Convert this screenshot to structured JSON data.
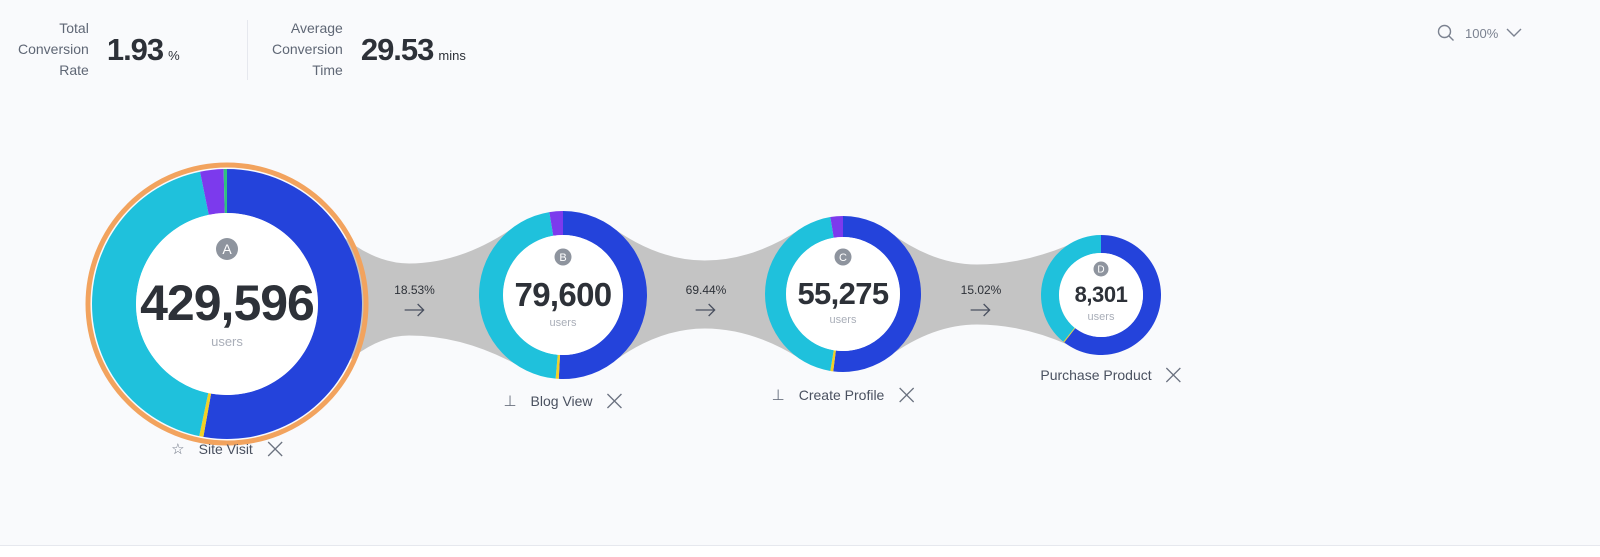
{
  "metrics": {
    "total_conversion": {
      "label_lines": [
        "Total",
        "Conversion",
        "Rate"
      ],
      "value": "1.93",
      "unit": "%"
    },
    "avg_conversion_time": {
      "label_lines": [
        "Average",
        "Conversion",
        "Time"
      ],
      "value": "29.53",
      "unit": "mins"
    }
  },
  "zoom": {
    "icon": "search-icon",
    "value": "100%",
    "dropdown_icon": "chevron-down-icon"
  },
  "colors": {
    "blue": "#2443db",
    "cyan": "#1fc1dc",
    "purple": "#7c3aed",
    "yellow": "#f2d024",
    "green": "#2ec27e",
    "connector": "#c4c4c4",
    "selected_ring": "#f2a35e",
    "badge": "#8e949e"
  },
  "steps": [
    {
      "letter": "A",
      "count": "429,596",
      "unit": "users",
      "label": "Site Visit",
      "icon": "star-icon",
      "selected": true,
      "segments": [
        {
          "color": "blue",
          "fraction": 0.528
        },
        {
          "color": "yellow",
          "fraction": 0.005
        },
        {
          "color": "cyan",
          "fraction": 0.435
        },
        {
          "color": "purple",
          "fraction": 0.028
        },
        {
          "color": "green",
          "fraction": 0.004
        }
      ]
    },
    {
      "letter": "B",
      "count": "79,600",
      "unit": "users",
      "label": "Blog View",
      "icon": "pin-icon",
      "selected": false,
      "segments": [
        {
          "color": "blue",
          "fraction": 0.508
        },
        {
          "color": "yellow",
          "fraction": 0.006
        },
        {
          "color": "cyan",
          "fraction": 0.46
        },
        {
          "color": "purple",
          "fraction": 0.026
        }
      ]
    },
    {
      "letter": "C",
      "count": "55,275",
      "unit": "users",
      "label": "Create Profile",
      "icon": "pin-icon",
      "selected": false,
      "segments": [
        {
          "color": "blue",
          "fraction": 0.52
        },
        {
          "color": "yellow",
          "fraction": 0.006
        },
        {
          "color": "cyan",
          "fraction": 0.448
        },
        {
          "color": "purple",
          "fraction": 0.026
        }
      ]
    },
    {
      "letter": "D",
      "count": "8,301",
      "unit": "users",
      "label": "Purchase Product",
      "icon": "",
      "selected": false,
      "segments": [
        {
          "color": "blue",
          "fraction": 0.605
        },
        {
          "color": "yellow",
          "fraction": 0.003
        },
        {
          "color": "cyan",
          "fraction": 0.392
        }
      ]
    }
  ],
  "conversions": [
    "18.53%",
    "69.44%",
    "15.02%"
  ]
}
